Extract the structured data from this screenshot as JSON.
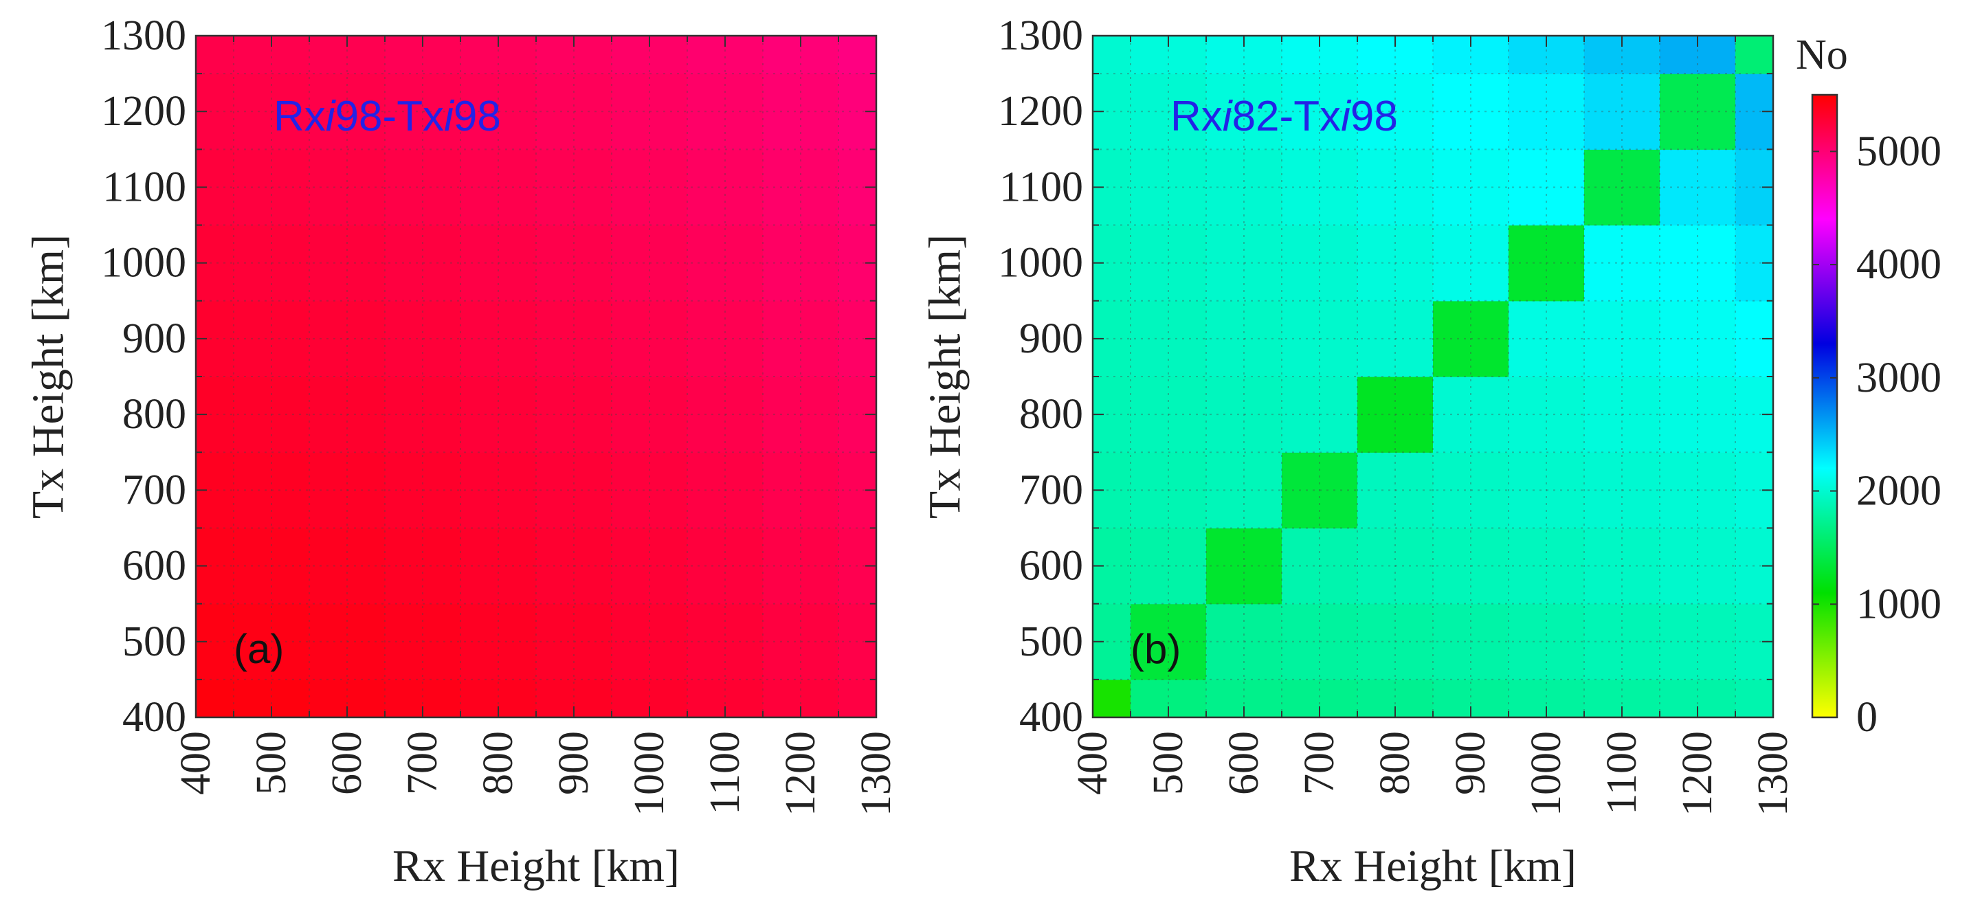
{
  "chart_data": [
    {
      "type": "heatmap",
      "panel_label": "(a)",
      "annotation": {
        "rx": "Rx",
        "rx_italic": "i",
        "rx_num": "98",
        "sep": "-",
        "tx": "Tx",
        "tx_italic": "i",
        "tx_num": "98",
        "color": "#2323e6"
      },
      "xlabel": "Rx Height [km]",
      "ylabel": "Tx Height [km]",
      "x": [
        400,
        500,
        600,
        700,
        800,
        900,
        1000,
        1100,
        1200,
        1300
      ],
      "y": [
        400,
        500,
        600,
        700,
        800,
        900,
        1000,
        1100,
        1200,
        1300
      ],
      "xlim": [
        400,
        1300
      ],
      "ylim": [
        400,
        1300
      ],
      "xticks": [
        "400",
        "500",
        "600",
        "700",
        "800",
        "900",
        "1000",
        "1100",
        "1200",
        "1300"
      ],
      "yticks": [
        "400",
        "500",
        "600",
        "700",
        "800",
        "900",
        "1000",
        "1100",
        "1200",
        "1300"
      ],
      "values": [
        [
          5450,
          5440,
          5420,
          5400,
          5375,
          5350,
          5320,
          5290,
          5250,
          5210
        ],
        [
          5420,
          5410,
          5395,
          5375,
          5350,
          5325,
          5295,
          5265,
          5225,
          5185
        ],
        [
          5390,
          5380,
          5365,
          5345,
          5320,
          5295,
          5265,
          5235,
          5195,
          5155
        ],
        [
          5360,
          5350,
          5335,
          5315,
          5290,
          5265,
          5235,
          5205,
          5165,
          5125
        ],
        [
          5330,
          5320,
          5305,
          5285,
          5260,
          5235,
          5205,
          5175,
          5135,
          5095
        ],
        [
          5300,
          5290,
          5275,
          5255,
          5230,
          5205,
          5175,
          5145,
          5105,
          5065
        ],
        [
          5270,
          5260,
          5245,
          5225,
          5200,
          5175,
          5145,
          5115,
          5075,
          5035
        ],
        [
          5240,
          5230,
          5215,
          5195,
          5170,
          5145,
          5115,
          5085,
          5045,
          5005
        ],
        [
          5210,
          5200,
          5185,
          5165,
          5140,
          5115,
          5085,
          5055,
          5015,
          4975
        ],
        [
          5180,
          5170,
          5155,
          5135,
          5110,
          5085,
          5055,
          5025,
          4985,
          4945
        ]
      ],
      "grid": true
    },
    {
      "type": "heatmap",
      "panel_label": "(b)",
      "annotation": {
        "rx": "Rx",
        "rx_italic": "i",
        "rx_num": "82",
        "sep": "-",
        "tx": "Tx",
        "tx_italic": "i",
        "tx_num": "98",
        "color": "#2323e6"
      },
      "xlabel": "Rx Height [km]",
      "ylabel": "Tx Height [km]",
      "x": [
        400,
        500,
        600,
        700,
        800,
        900,
        1000,
        1100,
        1200,
        1300
      ],
      "y": [
        400,
        500,
        600,
        700,
        800,
        900,
        1000,
        1100,
        1200,
        1300
      ],
      "xlim": [
        400,
        1300
      ],
      "ylim": [
        400,
        1300
      ],
      "xticks": [
        "400",
        "500",
        "600",
        "700",
        "800",
        "900",
        "1000",
        "1100",
        "1200",
        "1300"
      ],
      "yticks": [
        "400",
        "500",
        "600",
        "700",
        "800",
        "900",
        "1000",
        "1100",
        "1200",
        "1300"
      ],
      "values": [
        [
          1000,
          1650,
          1700,
          1700,
          1720,
          1750,
          1780,
          1800,
          1820,
          1850
        ],
        [
          1750,
          1350,
          1750,
          1780,
          1800,
          1820,
          1850,
          1880,
          1900,
          1920
        ],
        [
          1800,
          1820,
          1300,
          1850,
          1880,
          1900,
          1920,
          1950,
          1980,
          2000
        ],
        [
          1850,
          1870,
          1900,
          1350,
          1920,
          1950,
          1980,
          2000,
          2020,
          2050
        ],
        [
          1880,
          1900,
          1920,
          1950,
          1250,
          2000,
          2020,
          2050,
          2080,
          2100
        ],
        [
          1900,
          1920,
          1950,
          1980,
          2000,
          1300,
          2080,
          2100,
          2150,
          2200
        ],
        [
          1920,
          1950,
          1980,
          2000,
          2050,
          2100,
          1300,
          2180,
          2200,
          2300
        ],
        [
          1950,
          1980,
          2000,
          2050,
          2100,
          2150,
          2200,
          1400,
          2300,
          2400
        ],
        [
          1980,
          2000,
          2050,
          2100,
          2150,
          2200,
          2250,
          2350,
          1450,
          2500
        ],
        [
          2000,
          2050,
          2100,
          2150,
          2200,
          2250,
          2350,
          2450,
          2550,
          1600
        ]
      ],
      "grid": true
    }
  ],
  "colorbar": {
    "title": "No",
    "min": 0,
    "max": 5500,
    "ticks": [
      0,
      1000,
      2000,
      3000,
      4000,
      5000
    ],
    "tick_labels": [
      "0",
      "1000",
      "2000",
      "3000",
      "4000",
      "5000"
    ],
    "colormap": [
      [
        0.0,
        "#ffff00"
      ],
      [
        0.2,
        "#00e000"
      ],
      [
        0.4,
        "#00ffff"
      ],
      [
        0.6,
        "#0000e0"
      ],
      [
        0.8,
        "#ff00ff"
      ],
      [
        1.0,
        "#ff0000"
      ]
    ]
  }
}
